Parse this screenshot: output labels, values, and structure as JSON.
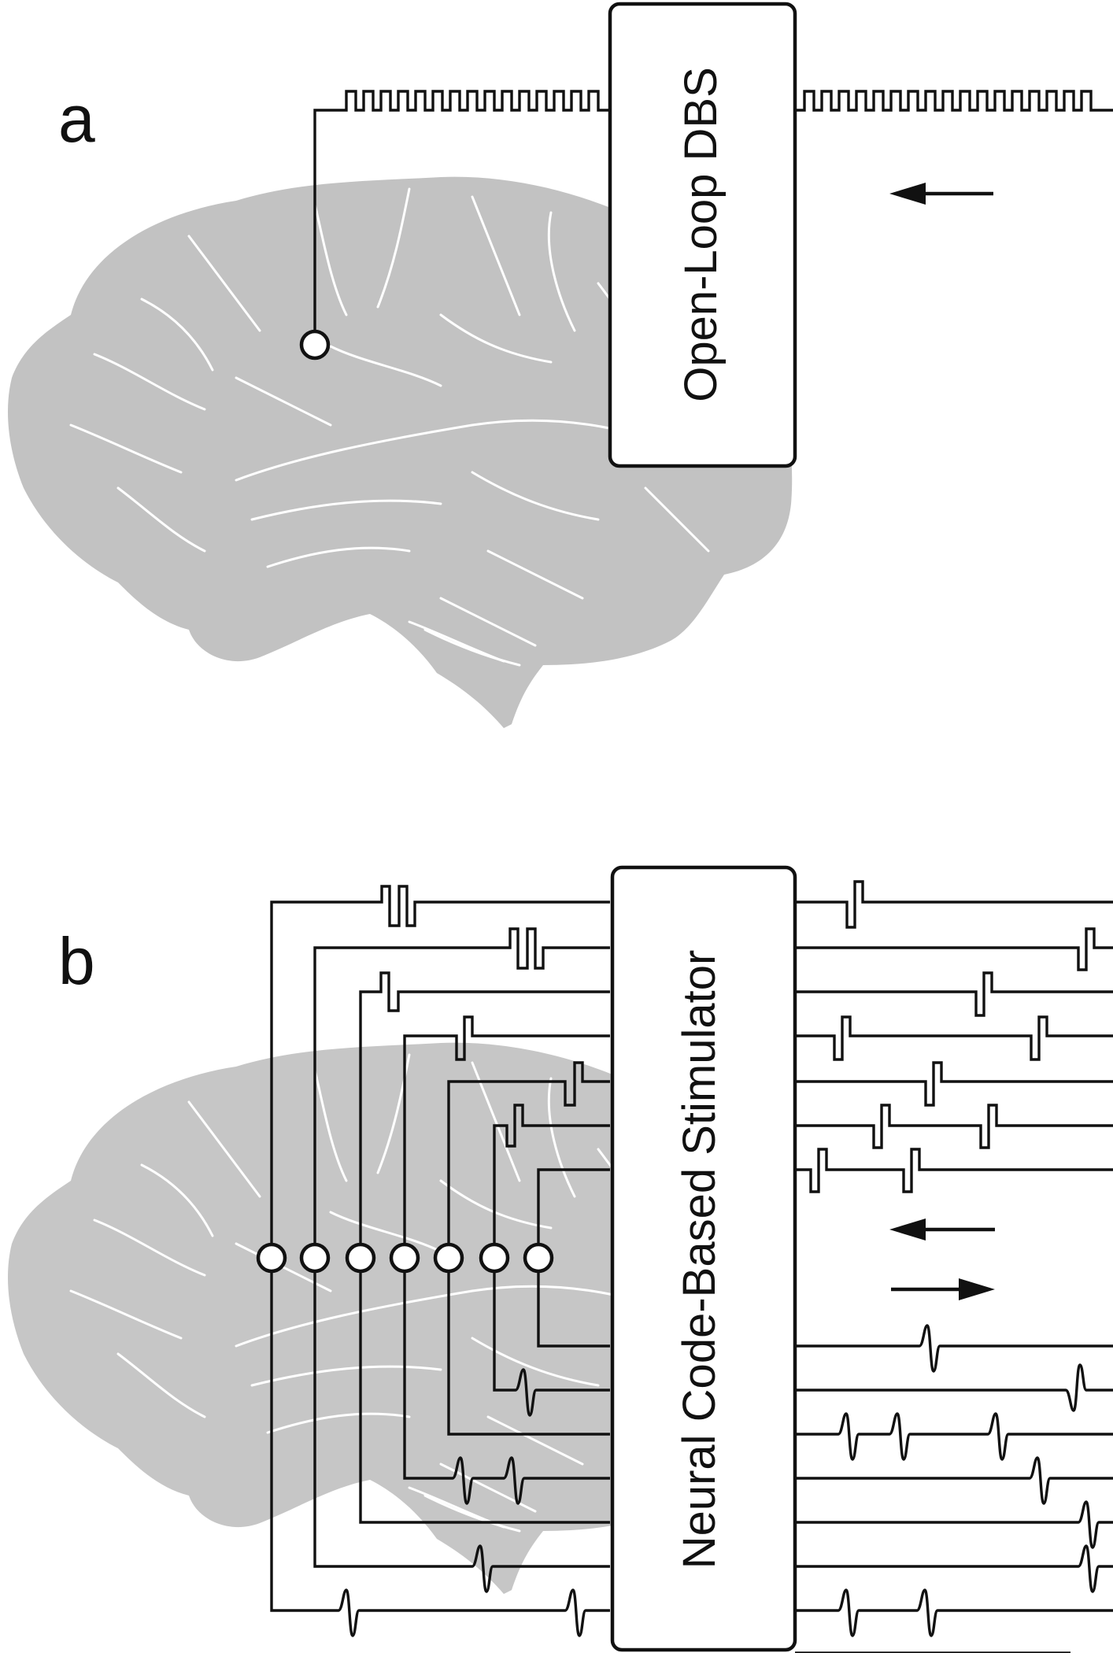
{
  "panel_a": {
    "label": "a",
    "box_label": "Open-Loop DBS"
  },
  "panel_b": {
    "label": "b",
    "box_label": "Neural Code-Based Stimulator"
  },
  "colors": {
    "brain": "#c2c2c2",
    "ink": "#111111",
    "background": "#ffffff"
  }
}
